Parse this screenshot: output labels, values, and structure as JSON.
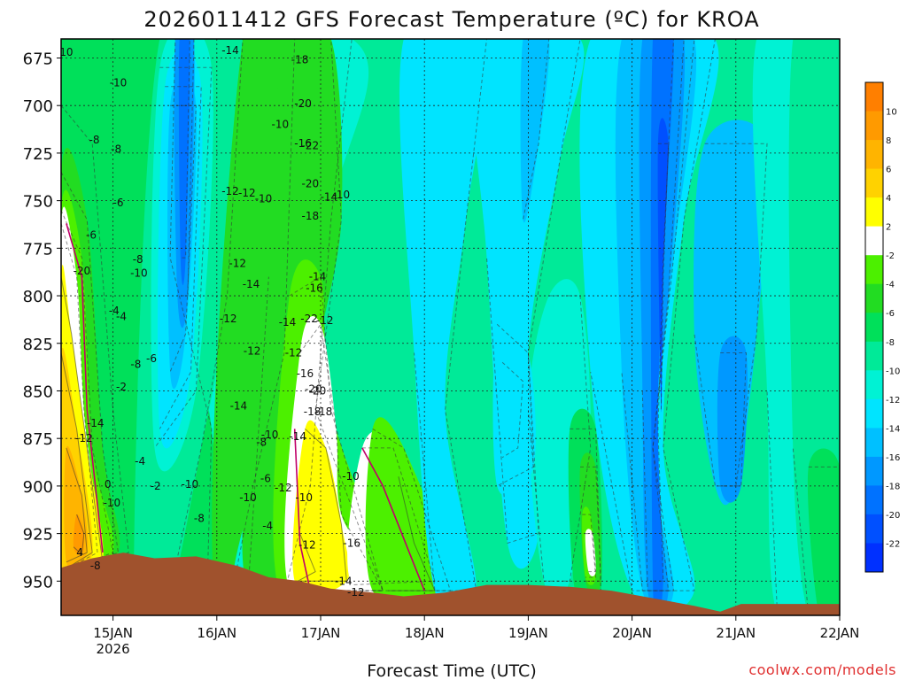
{
  "chart_data": {
    "type": "heatmap",
    "title": "2026011412 GFS Forecast Temperature (ºC) for KROA",
    "xlabel": "Forecast Time (UTC)",
    "ylabel": "",
    "watermark": "coolwx.com/models",
    "y_axis": {
      "ticks": [
        675,
        700,
        725,
        750,
        775,
        800,
        825,
        850,
        875,
        900,
        925,
        950
      ],
      "range": [
        665,
        968
      ],
      "inverted": true
    },
    "x_axis": {
      "range_days": [
        "2026-01-14 12Z",
        "2026-01-22 00Z"
      ],
      "ticks": [
        {
          "date": "2026-01-15",
          "label": "15JAN",
          "sublabel": "2026"
        },
        {
          "date": "2026-01-16",
          "label": "16JAN",
          "sublabel": ""
        },
        {
          "date": "2026-01-17",
          "label": "17JAN",
          "sublabel": ""
        },
        {
          "date": "2026-01-18",
          "label": "18JAN",
          "sublabel": ""
        },
        {
          "date": "2026-01-19",
          "label": "19JAN",
          "sublabel": ""
        },
        {
          "date": "2026-01-20",
          "label": "20JAN",
          "sublabel": ""
        },
        {
          "date": "2026-01-21",
          "label": "21JAN",
          "sublabel": ""
        },
        {
          "date": "2026-01-22",
          "label": "22JAN",
          "sublabel": ""
        }
      ]
    },
    "grid": true,
    "colorbar": {
      "position": "right",
      "bins": [
        {
          "from": 10,
          "to": 12,
          "color": "#ff7f00"
        },
        {
          "from": 8,
          "to": 10,
          "color": "#ff9a00"
        },
        {
          "from": 6,
          "to": 8,
          "color": "#ffb400"
        },
        {
          "from": 4,
          "to": 6,
          "color": "#ffd200"
        },
        {
          "from": 2,
          "to": 4,
          "color": "#ffff00"
        },
        {
          "from": -2,
          "to": 2,
          "color": "#ffffff"
        },
        {
          "from": -4,
          "to": -2,
          "color": "#4cf000"
        },
        {
          "from": -6,
          "to": -4,
          "color": "#22dc22"
        },
        {
          "from": -8,
          "to": -6,
          "color": "#00e05a"
        },
        {
          "from": -10,
          "to": -8,
          "color": "#00ea98"
        },
        {
          "from": -12,
          "to": -10,
          "color": "#00f2d4"
        },
        {
          "from": -14,
          "to": -12,
          "color": "#00e4ff"
        },
        {
          "from": -16,
          "to": -14,
          "color": "#00c0ff"
        },
        {
          "from": -18,
          "to": -16,
          "color": "#0098ff"
        },
        {
          "from": -20,
          "to": -18,
          "color": "#0072ff"
        },
        {
          "from": -22,
          "to": -20,
          "color": "#0050ff"
        },
        {
          "from": -24,
          "to": -22,
          "color": "#0030ff"
        }
      ],
      "tick_labels": [
        "10",
        "8",
        "6",
        "4",
        "2",
        "-2",
        "-4",
        "-6",
        "-8",
        "-10",
        "-12",
        "-14",
        "-16",
        "-18",
        "-20",
        "-22"
      ]
    },
    "contour_labels": [
      {
        "t": 0.05,
        "p": 672,
        "v": "10"
      },
      {
        "t": 0.32,
        "p": 718,
        "v": "-8"
      },
      {
        "t": 0.29,
        "p": 768,
        "v": "-6"
      },
      {
        "t": 0.2,
        "p": 787,
        "v": "-20"
      },
      {
        "t": 0.55,
        "p": 688,
        "v": "-10"
      },
      {
        "t": 0.53,
        "p": 723,
        "v": "-8"
      },
      {
        "t": 0.55,
        "p": 751,
        "v": "-6"
      },
      {
        "t": 0.74,
        "p": 781,
        "v": "-8"
      },
      {
        "t": 0.75,
        "p": 788,
        "v": "-10"
      },
      {
        "t": 0.51,
        "p": 808,
        "v": "-4"
      },
      {
        "t": 0.58,
        "p": 811,
        "v": "-4"
      },
      {
        "t": 0.72,
        "p": 836,
        "v": "-8"
      },
      {
        "t": 0.87,
        "p": 833,
        "v": "-6"
      },
      {
        "t": 0.22,
        "p": 875,
        "v": "-12"
      },
      {
        "t": 0.33,
        "p": 867,
        "v": "-14"
      },
      {
        "t": 0.49,
        "p": 909,
        "v": "-10"
      },
      {
        "t": 0.58,
        "p": 848,
        "v": "-2"
      },
      {
        "t": 0.76,
        "p": 887,
        "v": "-4"
      },
      {
        "t": 0.91,
        "p": 900,
        "v": "-2"
      },
      {
        "t": 0.45,
        "p": 899,
        "v": "0"
      },
      {
        "t": 0.33,
        "p": 942,
        "v": "-8"
      },
      {
        "t": 0.18,
        "p": 935,
        "v": "4"
      },
      {
        "t": 1.24,
        "p": 899,
        "v": "-10"
      },
      {
        "t": 1.33,
        "p": 917,
        "v": "-8"
      },
      {
        "t": 1.63,
        "p": 745,
        "v": "-12"
      },
      {
        "t": 1.7,
        "p": 783,
        "v": "-12"
      },
      {
        "t": 1.61,
        "p": 812,
        "v": "-12"
      },
      {
        "t": 1.63,
        "p": 671,
        "v": "-14"
      },
      {
        "t": 1.79,
        "p": 746,
        "v": "-12"
      },
      {
        "t": 1.95,
        "p": 749,
        "v": "-10"
      },
      {
        "t": 1.71,
        "p": 858,
        "v": "-14"
      },
      {
        "t": 1.84,
        "p": 829,
        "v": "-12"
      },
      {
        "t": 1.83,
        "p": 794,
        "v": "-14"
      },
      {
        "t": 1.93,
        "p": 877,
        "v": "-8"
      },
      {
        "t": 1.97,
        "p": 896,
        "v": "-6"
      },
      {
        "t": 1.99,
        "p": 921,
        "v": "-4"
      },
      {
        "t": 1.8,
        "p": 906,
        "v": "-10"
      },
      {
        "t": 2.01,
        "p": 873,
        "v": "-10"
      },
      {
        "t": 2.11,
        "p": 710,
        "v": "-10"
      },
      {
        "t": 2.14,
        "p": 901,
        "v": "-12"
      },
      {
        "t": 2.18,
        "p": 814,
        "v": "-14"
      },
      {
        "t": 2.28,
        "p": 874,
        "v": "-14"
      },
      {
        "t": 2.24,
        "p": 830,
        "v": "-12"
      },
      {
        "t": 2.34,
        "p": 906,
        "v": "-10"
      },
      {
        "t": 2.37,
        "p": 931,
        "v": "-12"
      },
      {
        "t": 2.35,
        "p": 841,
        "v": "-16"
      },
      {
        "t": 2.42,
        "p": 861,
        "v": "-18"
      },
      {
        "t": 2.43,
        "p": 849,
        "v": "-20"
      },
      {
        "t": 2.47,
        "p": 850,
        "v": "-20"
      },
      {
        "t": 2.53,
        "p": 861,
        "v": "-18"
      },
      {
        "t": 2.3,
        "p": 676,
        "v": "-18"
      },
      {
        "t": 2.33,
        "p": 699,
        "v": "-20"
      },
      {
        "t": 2.33,
        "p": 720,
        "v": "-16"
      },
      {
        "t": 2.4,
        "p": 721,
        "v": "-22"
      },
      {
        "t": 2.4,
        "p": 741,
        "v": "-20"
      },
      {
        "t": 2.4,
        "p": 758,
        "v": "-18"
      },
      {
        "t": 2.39,
        "p": 812,
        "v": "-22"
      },
      {
        "t": 2.44,
        "p": 796,
        "v": "-16"
      },
      {
        "t": 2.47,
        "p": 790,
        "v": "-14"
      },
      {
        "t": 2.54,
        "p": 813,
        "v": "-12"
      },
      {
        "t": 2.58,
        "p": 748,
        "v": "-14"
      },
      {
        "t": 2.7,
        "p": 747,
        "v": "-10"
      },
      {
        "t": 2.8,
        "p": 930,
        "v": "-16"
      },
      {
        "t": 2.72,
        "p": 950,
        "v": "-14"
      },
      {
        "t": 2.84,
        "p": 956,
        "v": "-12"
      },
      {
        "t": 2.79,
        "p": 895,
        "v": "-10"
      }
    ],
    "terrain_color": "#a0522d"
  }
}
